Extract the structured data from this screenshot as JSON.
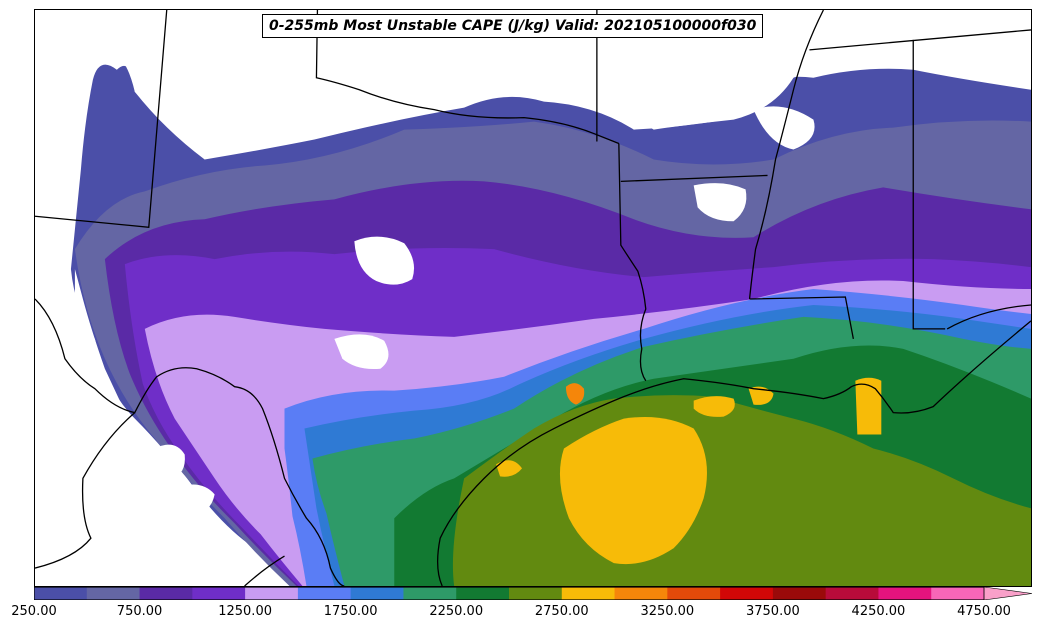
{
  "title": "0-255mb Most Unstable CAPE (J/kg) Valid: 202105100000f030",
  "colorbar": {
    "colors": [
      "#4b4fa8",
      "#6466a4",
      "#5a2aa6",
      "#6f2ec8",
      "#c99cf2",
      "#5a7df5",
      "#2f7ad4",
      "#2e9a68",
      "#127a32",
      "#628a10",
      "#f7bb08",
      "#f5860a",
      "#e34a0a",
      "#d20707",
      "#9a0a0a",
      "#b80b3a",
      "#e5137e",
      "#f766b8"
    ],
    "extend_color": "#f9a0c9",
    "tick_labels": [
      "250.00",
      "750.00",
      "1250.00",
      "1750.00",
      "2250.00",
      "2750.00",
      "3250.00",
      "3750.00",
      "4250.00",
      "4750.00"
    ]
  }
}
